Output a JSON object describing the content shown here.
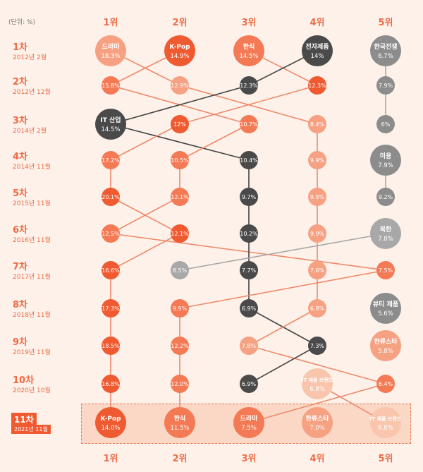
{
  "unit_label": "(단위: %)",
  "rank_labels": [
    "1위",
    "2위",
    "3위",
    "4위",
    "5위"
  ],
  "colors": {
    "dark_orange": "#ef5a30",
    "orange": "#f47a55",
    "light_orange": "#f6a182",
    "pale_orange": "#f9c5ad",
    "dark_gray": "#4a4a4a",
    "gray": "#8c8c8c",
    "light_gray": "#a8a8a8",
    "connector": "#ef8a6a",
    "connector_dark": "#444444",
    "connector_gray": "#a8a8a8"
  },
  "chart_data": {
    "type": "bump",
    "rows": [
      {
        "label": "1차",
        "date": "2012년 2월",
        "items": [
          {
            "name": "드라마",
            "value": "18.3%",
            "color": "light_orange"
          },
          {
            "name": "K-Pop",
            "value": "14.9%",
            "color": "dark_orange"
          },
          {
            "name": "한식",
            "value": "14.5%",
            "color": "orange"
          },
          {
            "name": "전자제품",
            "value": "14%",
            "color": "dark_gray"
          },
          {
            "name": "한국전쟁",
            "value": "6.7%",
            "color": "gray"
          }
        ]
      },
      {
        "label": "2차",
        "date": "2012년 12월",
        "items": [
          {
            "name": "",
            "value": "15.8%",
            "color": "orange"
          },
          {
            "name": "",
            "value": "12.9%",
            "color": "light_orange"
          },
          {
            "name": "",
            "value": "12.3%",
            "color": "dark_gray"
          },
          {
            "name": "",
            "value": "12.3%",
            "color": "dark_orange"
          },
          {
            "name": "",
            "value": "7.9%",
            "color": "gray"
          }
        ]
      },
      {
        "label": "3차",
        "date": "2014년 2월",
        "items": [
          {
            "name": "IT 산업",
            "value": "14.5%",
            "color": "dark_gray"
          },
          {
            "name": "",
            "value": "12%",
            "color": "dark_orange"
          },
          {
            "name": "",
            "value": "10.7%",
            "color": "orange"
          },
          {
            "name": "",
            "value": "8.4%",
            "color": "light_orange"
          },
          {
            "name": "",
            "value": "6%",
            "color": "gray"
          }
        ]
      },
      {
        "label": "4차",
        "date": "2014년 11월",
        "items": [
          {
            "name": "",
            "value": "17.2%",
            "color": "orange"
          },
          {
            "name": "",
            "value": "10.5%",
            "color": "orange"
          },
          {
            "name": "",
            "value": "10.4%",
            "color": "dark_gray"
          },
          {
            "name": "",
            "value": "9.9%",
            "color": "light_orange"
          },
          {
            "name": "미용",
            "value": "7.9%",
            "color": "gray"
          }
        ]
      },
      {
        "label": "5차",
        "date": "2015년 11월",
        "items": [
          {
            "name": "",
            "value": "20.1%",
            "color": "dark_orange"
          },
          {
            "name": "",
            "value": "12.1%",
            "color": "orange"
          },
          {
            "name": "",
            "value": "9.7%",
            "color": "dark_gray"
          },
          {
            "name": "",
            "value": "9.5%",
            "color": "light_orange"
          },
          {
            "name": "",
            "value": "9.2%",
            "color": "gray"
          }
        ]
      },
      {
        "label": "6차",
        "date": "2016년 11월",
        "items": [
          {
            "name": "",
            "value": "12.5%",
            "color": "orange"
          },
          {
            "name": "",
            "value": "12.1%",
            "color": "dark_orange"
          },
          {
            "name": "",
            "value": "10.2%",
            "color": "dark_gray"
          },
          {
            "name": "",
            "value": "9.9%",
            "color": "light_orange"
          },
          {
            "name": "북한",
            "value": "7.8%",
            "color": "light_gray"
          }
        ]
      },
      {
        "label": "7차",
        "date": "2017년 11월",
        "items": [
          {
            "name": "",
            "value": "16.6%",
            "color": "dark_orange"
          },
          {
            "name": "",
            "value": "8.5%",
            "color": "light_gray"
          },
          {
            "name": "",
            "value": "7.7%",
            "color": "dark_gray"
          },
          {
            "name": "",
            "value": "7.6%",
            "color": "light_orange"
          },
          {
            "name": "",
            "value": "7.5%",
            "color": "orange"
          }
        ]
      },
      {
        "label": "8차",
        "date": "2018년 11월",
        "items": [
          {
            "name": "",
            "value": "17.3%",
            "color": "dark_orange"
          },
          {
            "name": "",
            "value": "9.9%",
            "color": "orange"
          },
          {
            "name": "",
            "value": "6.9%",
            "color": "dark_gray"
          },
          {
            "name": "",
            "value": "6.8%",
            "color": "light_orange"
          },
          {
            "name": "뷰티 제품",
            "value": "5.6%",
            "color": "gray"
          }
        ]
      },
      {
        "label": "9차",
        "date": "2019년 11월",
        "items": [
          {
            "name": "",
            "value": "18.5%",
            "color": "dark_orange"
          },
          {
            "name": "",
            "value": "12.2%",
            "color": "orange"
          },
          {
            "name": "",
            "value": "7.8%",
            "color": "light_orange"
          },
          {
            "name": "",
            "value": "7.3%",
            "color": "dark_gray"
          },
          {
            "name": "한류스타",
            "value": "5.8%",
            "color": "light_orange"
          }
        ]
      },
      {
        "label": "10차",
        "date": "2020년 10월",
        "items": [
          {
            "name": "",
            "value": "16.8%",
            "color": "dark_orange"
          },
          {
            "name": "",
            "value": "12.0%",
            "color": "orange"
          },
          {
            "name": "",
            "value": "6.9%",
            "color": "dark_gray"
          },
          {
            "name": "IT 제품 브랜드",
            "value": "6.8%",
            "color": "pale_orange"
          },
          {
            "name": "",
            "value": "6.4%",
            "color": "orange"
          }
        ]
      },
      {
        "label": "11차",
        "date": "2021년 11월",
        "items": [
          {
            "name": "K-Pop",
            "value": "14.0%",
            "color": "dark_orange"
          },
          {
            "name": "한식",
            "value": "11.5%",
            "color": "orange"
          },
          {
            "name": "드라마",
            "value": "7.5%",
            "color": "orange"
          },
          {
            "name": "한류스타",
            "value": "7.0%",
            "color": "light_orange"
          },
          {
            "name": "IT 제품 브랜드",
            "value": "6.8%",
            "color": "pale_orange"
          }
        ]
      }
    ],
    "connections": [
      {
        "from_row": 1,
        "from_col": 1,
        "to_col": 2,
        "style": "orange"
      },
      {
        "from_row": 1,
        "from_col": 2,
        "to_col": 1,
        "style": "orange"
      },
      {
        "from_row": 1,
        "from_col": 3,
        "to_col": 4,
        "style": "orange"
      },
      {
        "from_row": 1,
        "from_col": 4,
        "to_col": 3,
        "style": "dark"
      },
      {
        "from_row": 1,
        "from_col": 5,
        "to_col": 5,
        "style": "gray"
      },
      {
        "from_row": 2,
        "from_col": 1,
        "to_col": 3,
        "style": "orange"
      },
      {
        "from_row": 2,
        "from_col": 2,
        "to_col": 4,
        "style": "orange"
      },
      {
        "from_row": 2,
        "from_col": 3,
        "to_col": 1,
        "style": "dark"
      },
      {
        "from_row": 2,
        "from_col": 4,
        "to_col": 2,
        "style": "orange"
      },
      {
        "from_row": 2,
        "from_col": 5,
        "to_col": 5,
        "style": "gray"
      },
      {
        "from_row": 3,
        "from_col": 1,
        "to_col": 3,
        "style": "dark"
      },
      {
        "from_row": 3,
        "from_col": 2,
        "to_col": 1,
        "style": "orange"
      },
      {
        "from_row": 3,
        "from_col": 3,
        "to_col": 2,
        "style": "orange"
      },
      {
        "from_row": 3,
        "from_col": 4,
        "to_col": 4,
        "style": "orange"
      },
      {
        "from_row": 4,
        "from_col": 1,
        "to_col": 1,
        "style": "orange"
      },
      {
        "from_row": 4,
        "from_col": 2,
        "to_col": 2,
        "style": "orange"
      },
      {
        "from_row": 4,
        "from_col": 3,
        "to_col": 3,
        "style": "dark"
      },
      {
        "from_row": 4,
        "from_col": 4,
        "to_col": 4,
        "style": "orange"
      },
      {
        "from_row": 4,
        "from_col": 5,
        "to_col": 5,
        "style": "gray"
      },
      {
        "from_row": 5,
        "from_col": 1,
        "to_col": 2,
        "style": "orange"
      },
      {
        "from_row": 5,
        "from_col": 2,
        "to_col": 1,
        "style": "orange"
      },
      {
        "from_row": 5,
        "from_col": 3,
        "to_col": 3,
        "style": "dark"
      },
      {
        "from_row": 5,
        "from_col": 4,
        "to_col": 4,
        "style": "orange"
      },
      {
        "from_row": 6,
        "from_col": 1,
        "to_col": 5,
        "style": "orange"
      },
      {
        "from_row": 6,
        "from_col": 2,
        "to_col": 1,
        "style": "orange"
      },
      {
        "from_row": 6,
        "from_col": 3,
        "to_col": 3,
        "style": "dark"
      },
      {
        "from_row": 6,
        "from_col": 4,
        "to_col": 4,
        "style": "orange"
      },
      {
        "from_row": 6,
        "from_col": 5,
        "to_col": 2,
        "style": "gray"
      },
      {
        "from_row": 7,
        "from_col": 1,
        "to_col": 1,
        "style": "orange"
      },
      {
        "from_row": 7,
        "from_col": 3,
        "to_col": 3,
        "style": "dark"
      },
      {
        "from_row": 7,
        "from_col": 4,
        "to_col": 4,
        "style": "orange"
      },
      {
        "from_row": 7,
        "from_col": 5,
        "to_col": 2,
        "style": "orange"
      },
      {
        "from_row": 8,
        "from_col": 1,
        "to_col": 1,
        "style": "orange"
      },
      {
        "from_row": 8,
        "from_col": 2,
        "to_col": 2,
        "style": "orange"
      },
      {
        "from_row": 8,
        "from_col": 3,
        "to_col": 4,
        "style": "dark"
      },
      {
        "from_row": 8,
        "from_col": 4,
        "to_col": 3,
        "style": "orange"
      },
      {
        "from_row": 9,
        "from_col": 1,
        "to_col": 1,
        "style": "orange"
      },
      {
        "from_row": 9,
        "from_col": 2,
        "to_col": 2,
        "style": "orange"
      },
      {
        "from_row": 9,
        "from_col": 3,
        "to_col": 5,
        "style": "orange"
      },
      {
        "from_row": 9,
        "from_col": 4,
        "to_col": 3,
        "style": "dark"
      },
      {
        "from_row": 10,
        "from_col": 1,
        "to_col": 1,
        "style": "orange"
      },
      {
        "from_row": 10,
        "from_col": 2,
        "to_col": 2,
        "style": "orange"
      },
      {
        "from_row": 10,
        "from_col": 4,
        "to_col": 5,
        "style": "orange"
      },
      {
        "from_row": 10,
        "from_col": 5,
        "to_col": 3,
        "style": "orange"
      }
    ]
  }
}
